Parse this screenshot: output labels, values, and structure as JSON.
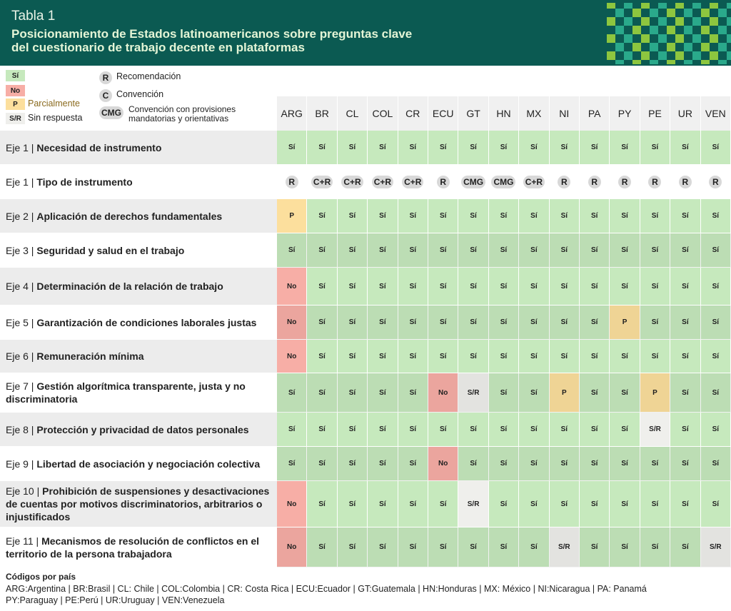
{
  "header": {
    "label": "Tabla 1",
    "title_lines": [
      "Posicionamiento de Estados latinoamericanos sobre preguntas clave",
      "del cuestionario de trabajo decente en plataformas"
    ]
  },
  "legend": {
    "answers": [
      {
        "code": "Sí",
        "color": "#c6e9bd"
      },
      {
        "code": "No",
        "color": "#f7aea6"
      },
      {
        "code": "P",
        "label": "Parcialmente",
        "color": "#fcdf9d"
      },
      {
        "code": "S/R",
        "label": "Sin respuesta",
        "color": "#efefec"
      }
    ],
    "instruments": [
      {
        "code": "R",
        "label": "Recomendación"
      },
      {
        "code": "C",
        "label": "Convención"
      },
      {
        "code": "CMG",
        "label": "Convención con provisiones mandatorias y orientativas"
      }
    ]
  },
  "table": {
    "columns": [
      "ARG",
      "BR",
      "CL",
      "COL",
      "CR",
      "ECU",
      "GT",
      "HN",
      "MX",
      "NI",
      "PA",
      "PY",
      "PE",
      "UR",
      "VEN"
    ],
    "rows": [
      {
        "eje": "Eje 1 |",
        "label": "Necesidad de instrumento",
        "cells": [
          "Sí",
          "Sí",
          "Sí",
          "Sí",
          "Sí",
          "Sí",
          "Sí",
          "Sí",
          "Sí",
          "Sí",
          "Sí",
          "Sí",
          "Sí",
          "Sí",
          "Sí"
        ]
      },
      {
        "eje": "Eje 1 |",
        "label": "Tipo de instrumento",
        "cells": [
          "R",
          "C+R",
          "C+R",
          "C+R",
          "C+R",
          "R",
          "CMG",
          "CMG",
          "C+R",
          "R",
          "R",
          "R",
          "R",
          "R",
          "R"
        ]
      },
      {
        "eje": "Eje 2 |",
        "label": "Aplicación de derechos fundamentales",
        "cells": [
          "P",
          "Sí",
          "Sí",
          "Sí",
          "Sí",
          "Sí",
          "Sí",
          "Sí",
          "Sí",
          "Sí",
          "Sí",
          "Sí",
          "Sí",
          "Sí",
          "Sí"
        ]
      },
      {
        "eje": "Eje 3 |",
        "label": "Seguridad y salud en el trabajo",
        "cells": [
          "Sí",
          "Sí",
          "Sí",
          "Sí",
          "Sí",
          "Sí",
          "Sí",
          "Sí",
          "Sí",
          "Sí",
          "Sí",
          "Sí",
          "Sí",
          "Sí",
          "Sí"
        ]
      },
      {
        "eje": "Eje 4 |",
        "label": "Determinación de la relación de trabajo",
        "cells": [
          "No",
          "Sí",
          "Sí",
          "Sí",
          "Sí",
          "Sí",
          "Sí",
          "Sí",
          "Sí",
          "Sí",
          "Sí",
          "Sí",
          "Sí",
          "Sí",
          "Sí"
        ]
      },
      {
        "eje": "Eje 5 |",
        "label": "Garantización de condiciones laborales justas",
        "cells": [
          "No",
          "Sí",
          "Sí",
          "Sí",
          "Sí",
          "Sí",
          "Sí",
          "Sí",
          "Sí",
          "Sí",
          "Sí",
          "P",
          "Sí",
          "Sí",
          "Sí"
        ]
      },
      {
        "eje": "Eje 6 |",
        "label": "Remuneración mínima",
        "cells": [
          "No",
          "Sí",
          "Sí",
          "Sí",
          "Sí",
          "Sí",
          "Sí",
          "Sí",
          "Sí",
          "Sí",
          "Sí",
          "Sí",
          "Sí",
          "Sí",
          "Sí"
        ]
      },
      {
        "eje": "Eje 7 |",
        "label": "Gestión algorítmica transparente, justa y no discriminatoria",
        "cells": [
          "Sí",
          "Sí",
          "Sí",
          "Sí",
          "Sí",
          "No",
          "S/R",
          "Sí",
          "Sí",
          "P",
          "Sí",
          "Sí",
          "P",
          "Sí",
          "Sí"
        ]
      },
      {
        "eje": "Eje 8 |",
        "label": "Protección y privacidad de datos personales",
        "cells": [
          "Sí",
          "Sí",
          "Sí",
          "Sí",
          "Sí",
          "Sí",
          "Sí",
          "Sí",
          "Sí",
          "Sí",
          "Sí",
          "Sí",
          "S/R",
          "Sí",
          "Sí"
        ]
      },
      {
        "eje": "Eje 9 |",
        "label": "Libertad de asociación y negociación colectiva",
        "cells": [
          "Sí",
          "Sí",
          "Sí",
          "Sí",
          "Sí",
          "No",
          "Sí",
          "Sí",
          "Sí",
          "Sí",
          "Sí",
          "Sí",
          "Sí",
          "Sí",
          "Sí"
        ]
      },
      {
        "eje": "Eje 10 |",
        "label": "Prohibición de suspensiones y desactivaciones de cuentas por motivos discriminatorios, arbitrarios o injustificados",
        "cells": [
          "No",
          "Sí",
          "Sí",
          "Sí",
          "Sí",
          "Sí",
          "S/R",
          "Sí",
          "Sí",
          "Sí",
          "Sí",
          "Sí",
          "Sí",
          "Sí",
          "Sí"
        ]
      },
      {
        "eje": "Eje 11 |",
        "label": "Mecanismos de resolución de conflictos en el territorio de la persona trabajadora",
        "cells": [
          "No",
          "Sí",
          "Sí",
          "Sí",
          "Sí",
          "Sí",
          "Sí",
          "Sí",
          "Sí",
          "S/R",
          "Sí",
          "Sí",
          "Sí",
          "Sí",
          "S/R"
        ]
      }
    ]
  },
  "footer": {
    "title": "Códigos por país",
    "lines": [
      "ARG:Argentina | BR:Brasil | CL: Chile | COL:Colombia | CR: Costa Rica | ECU:Ecuador | GT:Guatemala | HN:Honduras | MX: México | NI:Nicaragua | PA: Panamá",
      "PY:Paraguay | PE:Perú | UR:Uruguay | VEN:Venezuela"
    ]
  }
}
